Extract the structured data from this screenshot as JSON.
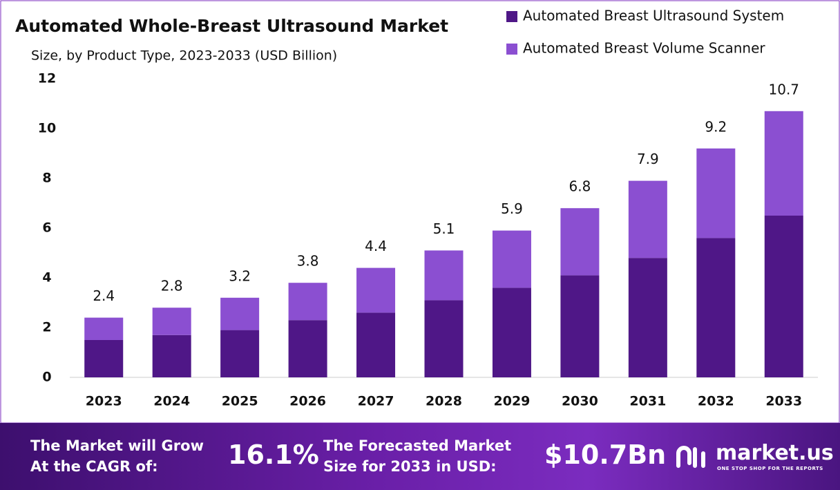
{
  "chart_data": {
    "type": "stacked_bar",
    "title": "Automated Whole-Breast Ultrasound Market",
    "subtitle": "Size, by Product Type, 2023-2033 (USD Billion)",
    "categories": [
      "2023",
      "2024",
      "2025",
      "2026",
      "2027",
      "2028",
      "2029",
      "2030",
      "2031",
      "2032",
      "2033"
    ],
    "series": [
      {
        "name": "Automated Breast Ultrasound System",
        "color": "#4f1787",
        "values": [
          1.5,
          1.7,
          1.9,
          2.3,
          2.6,
          3.1,
          3.6,
          4.1,
          4.8,
          5.6,
          6.5
        ]
      },
      {
        "name": "Automated Breast Volume Scanner",
        "color": "#8b4fd1",
        "values": [
          0.9,
          1.1,
          1.3,
          1.5,
          1.8,
          2.0,
          2.3,
          2.7,
          3.1,
          3.6,
          4.2
        ]
      }
    ],
    "totals": [
      2.4,
      2.8,
      3.2,
      3.8,
      4.4,
      5.1,
      5.9,
      6.8,
      7.9,
      9.2,
      10.7
    ],
    "ylim": [
      0,
      12
    ],
    "yticks": [
      0,
      2,
      4,
      6,
      8,
      10,
      12
    ],
    "grid": false,
    "legend": "top-right"
  },
  "footer": {
    "cagr_label_1": "The Market will Grow",
    "cagr_label_2": "At the CAGR of:",
    "cagr": "16.1%",
    "forecast_label_1": "The Forecasted Market",
    "forecast_label_2": "Size for 2033 in USD:",
    "forecast": "$10.7Bn",
    "brand": "market.us",
    "tagline": "ONE STOP SHOP FOR THE REPORTS"
  }
}
